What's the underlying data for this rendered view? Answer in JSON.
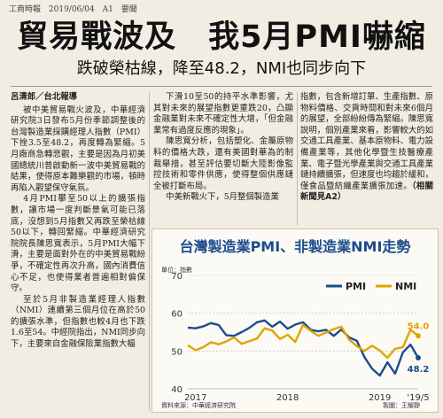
{
  "masthead": {
    "paper": "工商時報",
    "date": "2019/06/04",
    "page": "A1",
    "section": "要聞"
  },
  "headline": "貿易戰波及　我5月PMI嚇縮",
  "subhead": "跌破榮枯線，降至48.2，NMI也同步向下",
  "byline": "呂清郎／台北報導",
  "col1": [
    "被中美貿易戰火波及，中華經濟研究院3日發布5月份季節調整後的台灣製造業採購經理人指數（PMI）下挫3.5至48.2，再度轉為緊縮。5月廠商急轉悲觀，主要是因為月初美國總統川普啟動新一波中美貿易戰的結果，使得原本難樂觀的市場，頓時再陷入觀望保守氣氛。",
    "4月PMI攀至50以上的擴張指數，讓市場一度判斷景氣可能已落底，沒想到5月指數又再跌至榮枯線50以下，轉回緊縮。中華經濟研究院院長陳思寬表示，5月PMI大幅下滑，主要是面對外在的中美貿易戰紛爭，不確定性再次升高，國內消費信心不足，也使得業者普遍相對偏保守。",
    "至於5月非製造業經理人指數（NMI）連續第三個月位在高於50的擴張水準，但指數也較4月也下跌1.6至54。中經院指出，NMI同步向下，主要來自金融保險業指數大幅"
  ],
  "col2": [
    "下滑10至50的持平水準影響，尤其對未來的展望指數更重跌20，凸顯金融業對未來不確定性大增，「但金融業常有過度反應的現象」。",
    "陳思寬分析，包括塑化、金屬原物料的價格大跌，還有美國對華為的制裁舉措，甚至評估要切斷大陸影像監控技術和零件供應，使得整個供應鏈全被打斷布局。",
    "中美新戰火下，5月整個製造業"
  ],
  "col3": [
    "指數，包含新增訂單、生產指數、原物料價格、交貨時間和對未來6個月的展望，全部紛紛傳為緊縮。陳思寬說明，個別產業來看，影響較大的如交通工具產業、基本原物料、電力設備產業等，其他化學暨生技醫療產業、電子暨光學產業與交通工具產業鏈持續擴張，但速度也均趨於緩和，僅食品暨紡織產業擴張加速。"
  ],
  "credit": "（相關新聞見A2）",
  "chart": {
    "title": "台灣製造業PMI、非製造業NMI走勢",
    "unit": "單位：指數",
    "source": "資料來源：中華經濟研究院",
    "designer": "製圖：王耀靜",
    "colors": {
      "pmi": "#1d4c8c",
      "nmi": "#e0a400"
    }
  },
  "chart_data": {
    "type": "line",
    "x_labels": [
      "2017",
      "2018",
      "2019",
      "'19/5"
    ],
    "ylim": [
      40,
      70
    ],
    "yticks": [
      40,
      50,
      60,
      70
    ],
    "legend": "top-right",
    "series": [
      {
        "name": "PMI",
        "values": [
          56.2,
          56.0,
          56.5,
          57.4,
          56.9,
          54.2,
          54.0,
          55.0,
          56.1,
          57.6,
          58.1,
          56.4,
          57.8,
          55.9,
          57.0,
          57.6,
          55.6,
          55.2,
          55.6,
          54.0,
          55.7,
          53.6,
          52.7,
          48.4,
          45.3,
          43.5,
          47.0,
          44.0,
          49.6,
          51.7,
          48.2
        ]
      },
      {
        "name": "NMI",
        "values": [
          51.5,
          50.2,
          51.0,
          52.3,
          51.8,
          52.5,
          53.6,
          51.9,
          52.6,
          53.3,
          56.0,
          55.4,
          53.2,
          54.3,
          52.4,
          56.9,
          55.3,
          54.0,
          54.9,
          55.8,
          56.4,
          53.0,
          51.3,
          50.0,
          51.4,
          50.1,
          48.2,
          50.6,
          51.0,
          55.6,
          54.0
        ]
      }
    ],
    "annotations": [
      {
        "series": "NMI",
        "label": "54.0"
      },
      {
        "series": "PMI",
        "label": "48.2"
      }
    ]
  }
}
